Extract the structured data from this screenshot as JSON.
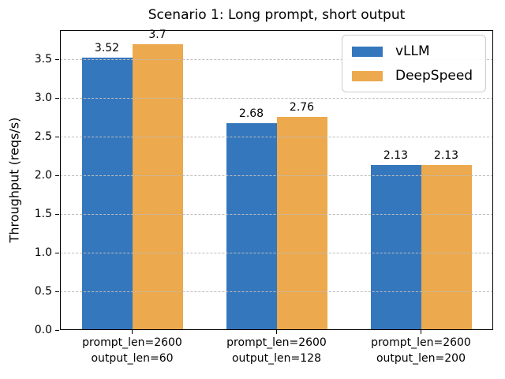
{
  "chart_data": {
    "type": "bar",
    "title": "Scenario 1: Long prompt, short output",
    "ylabel": "Throughput (reqs/s)",
    "xlabel": "",
    "categories": [
      [
        "prompt_len=2600",
        "output_len=60"
      ],
      [
        "prompt_len=2600",
        "output_len=128"
      ],
      [
        "prompt_len=2600",
        "output_len=200"
      ]
    ],
    "series": [
      {
        "name": "vLLM",
        "color": "#3477bd",
        "values": [
          3.52,
          2.68,
          2.13
        ]
      },
      {
        "name": "DeepSpeed",
        "color": "#eca94d",
        "values": [
          3.7,
          2.76,
          2.13
        ]
      }
    ],
    "bar_value_labels": [
      [
        "3.52",
        "2.68",
        "2.13"
      ],
      [
        "3.7",
        "2.76",
        "2.13"
      ]
    ],
    "ylim": [
      0,
      3.88
    ],
    "yticks": [
      "0.0",
      "0.5",
      "1.0",
      "1.5",
      "2.0",
      "2.5",
      "3.0",
      "3.5"
    ],
    "grid": true,
    "grid_style": "dashed",
    "grid_color": "#bdbdbd",
    "legend": {
      "position": "upper right",
      "entries": [
        "vLLM",
        "DeepSpeed"
      ]
    }
  }
}
